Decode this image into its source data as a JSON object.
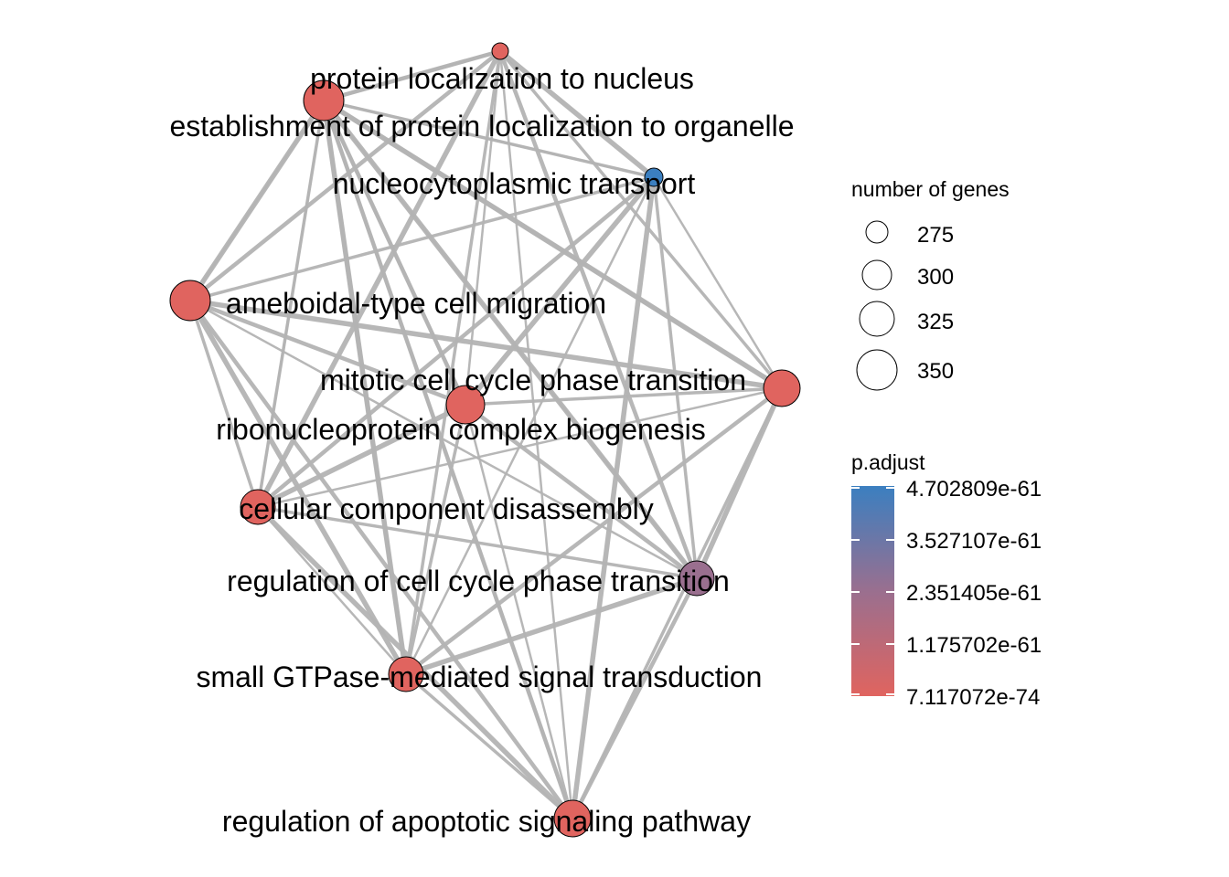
{
  "nodes": [
    {
      "id": "protein_localization_to_nucleus",
      "label": "protein localization to nucleus",
      "color": "#e0645f"
    },
    {
      "id": "establishment_protein_localization_organelle",
      "label": "establishment of protein localization to organelle",
      "color": "#e0645f"
    },
    {
      "id": "top_small_node",
      "label": "",
      "color": "#e0645f"
    },
    {
      "id": "nucleocytoplasmic_transport",
      "label": "nucleocytoplasmic transport",
      "color": "#3b7fc0"
    },
    {
      "id": "ameboidal_type_cell_migration",
      "label": "ameboidal-type cell migration",
      "color": "#e0645f"
    },
    {
      "id": "mitotic_cell_cycle_phase_transition",
      "label": "mitotic cell cycle phase transition",
      "color": "#e0645f"
    },
    {
      "id": "ribonucleoprotein_complex_biogenesis",
      "label": "ribonucleoprotein complex biogenesis",
      "color": "#e0645f"
    },
    {
      "id": "cellular_component_disassembly",
      "label": "cellular component disassembly",
      "color": "#e0645f"
    },
    {
      "id": "regulation_cell_cycle_phase_transition",
      "label": "regulation of cell cycle phase transition",
      "color": "#9a6f8f"
    },
    {
      "id": "small_gtpase_signal_transduction",
      "label": "small GTPase-mediated signal transduction",
      "color": "#e0645f"
    },
    {
      "id": "regulation_apoptotic_signaling_pathway",
      "label": "regulation of apoptotic signaling pathway",
      "color": "#e0645f"
    }
  ],
  "edge_color": "#b3b3b3",
  "legend_size": {
    "title": "number of genes",
    "entries": [
      "275",
      "300",
      "325",
      "350"
    ]
  },
  "legend_color": {
    "title": "p.adjust",
    "high_color": "#3b7fc0",
    "low_color": "#e0645f",
    "ticks": [
      "4.702809e-61",
      "3.527107e-61",
      "2.351405e-61",
      "1.175702e-61",
      "7.117072e-74"
    ]
  }
}
